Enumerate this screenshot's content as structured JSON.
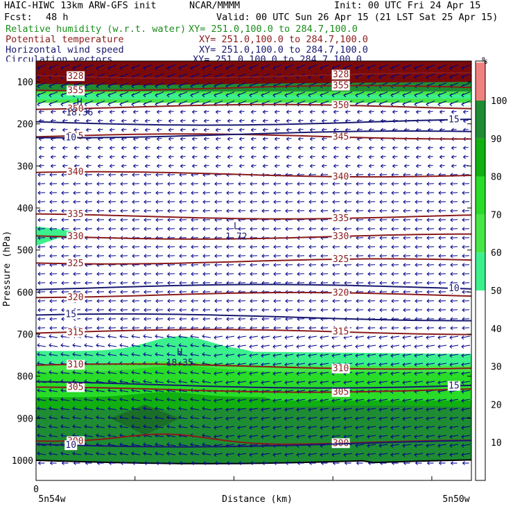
{
  "header": {
    "model": "HAIC-HIWC 13km ARW-GFS init",
    "org": "NCAR/MMMM",
    "init": "Init: 00 UTC Fri 24 Apr 15",
    "fcst_label": "Fcst:",
    "fcst_value": "48 h",
    "valid": "Valid: 00 UTC Sun 26 Apr 15 (21 LST Sat 25 Apr 15)",
    "fields": [
      {
        "name": "Relative humidity (w.r.t. water)",
        "xy": "XY= 251.0,100.0 to 284.7,100.0",
        "color": "#1a8c1a"
      },
      {
        "name": "Potential temperature",
        "xy": "XY= 251.0,100.0 to 284.7,100.0",
        "color": "#8b1a1a"
      },
      {
        "name": "Horizontal wind speed",
        "xy": "XY= 251.0,100.0 to 284.7,100.0",
        "color": "#191970"
      },
      {
        "name": "Circulation vectors",
        "xy": "XY= 251.0,100.0 to 284.7,100.0",
        "color": "#191970"
      }
    ]
  },
  "chart_data": {
    "type": "cross-section",
    "ylabel": "Pressure (hPa)",
    "xlabel": "Distance (km)",
    "y_ticks": [
      100,
      200,
      300,
      400,
      500,
      600,
      700,
      800,
      900,
      1000
    ],
    "ylim": [
      1050,
      50
    ],
    "x_tick_label": "0",
    "x_start_label": "5n54w",
    "x_end_label": "5n50w",
    "colorbar": {
      "unit": "%",
      "ticks": [
        10,
        20,
        30,
        40,
        50,
        60,
        70,
        80,
        90,
        100
      ],
      "bins": [
        {
          "from": 50,
          "to": 60,
          "color": "#3cf08c"
        },
        {
          "from": 60,
          "to": 70,
          "color": "#46e646"
        },
        {
          "from": 70,
          "to": 80,
          "color": "#28dc28"
        },
        {
          "from": 80,
          "to": 90,
          "color": "#10b010"
        },
        {
          "from": 90,
          "to": 100,
          "color": "#1e8c32"
        },
        {
          "from": 100,
          "to": 110,
          "color": "#f08080"
        }
      ]
    },
    "theta_contours": [
      {
        "value": "328",
        "p": 85
      },
      {
        "value": "355",
        "p": 115
      },
      {
        "value": "350",
        "p": 160
      },
      {
        "value": "345",
        "p": 230
      },
      {
        "value": "340",
        "p": 320
      },
      {
        "value": "335",
        "p": 420
      },
      {
        "value": "330",
        "p": 468
      },
      {
        "value": "325",
        "p": 527
      },
      {
        "value": "320",
        "p": 607
      },
      {
        "value": "315",
        "p": 695
      },
      {
        "value": "310",
        "p": 777
      },
      {
        "value": "305",
        "p": 832
      },
      {
        "value": "300",
        "p": 958
      }
    ],
    "wind_contours": [
      {
        "value": "15",
        "p": 195
      },
      {
        "value": "10",
        "p": 225
      },
      {
        "value": "10",
        "p": 590
      },
      {
        "value": "15",
        "p": 660
      },
      {
        "value": "15",
        "p": 820
      },
      {
        "value": "10",
        "p": 960
      }
    ],
    "markers": [
      {
        "letter": "H",
        "value": "18.36",
        "p": 165,
        "frac": 0.1
      },
      {
        "letter": "L",
        "value": "1.72",
        "p": 460,
        "frac": 0.46
      },
      {
        "letter": "H",
        "value": "18.35",
        "p": 760,
        "frac": 0.33
      }
    ]
  }
}
